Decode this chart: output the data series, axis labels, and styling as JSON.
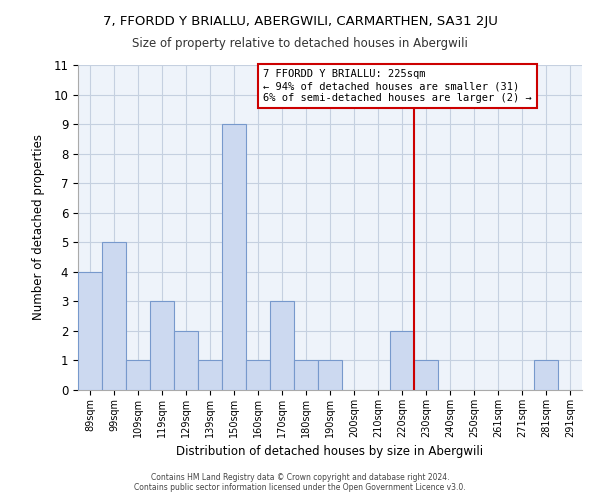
{
  "title": "7, FFORDD Y BRIALLU, ABERGWILI, CARMARTHEN, SA31 2JU",
  "subtitle": "Size of property relative to detached houses in Abergwili",
  "xlabel": "Distribution of detached houses by size in Abergwili",
  "ylabel": "Number of detached properties",
  "bins": [
    "89sqm",
    "99sqm",
    "109sqm",
    "119sqm",
    "129sqm",
    "139sqm",
    "150sqm",
    "160sqm",
    "170sqm",
    "180sqm",
    "190sqm",
    "200sqm",
    "210sqm",
    "220sqm",
    "230sqm",
    "240sqm",
    "250sqm",
    "261sqm",
    "271sqm",
    "281sqm",
    "291sqm"
  ],
  "counts": [
    4,
    5,
    1,
    3,
    2,
    1,
    9,
    1,
    3,
    1,
    1,
    0,
    0,
    2,
    1,
    0,
    0,
    0,
    0,
    1,
    0
  ],
  "bar_color": "#ccd9f0",
  "bar_edge_color": "#7799cc",
  "vline_color": "#cc0000",
  "vline_pos": 13.5,
  "ylim_max": 11,
  "yticks": [
    0,
    1,
    2,
    3,
    4,
    5,
    6,
    7,
    8,
    9,
    10,
    11
  ],
  "annotation_title": "7 FFORDD Y BRIALLU: 225sqm",
  "annotation_line1": "← 94% of detached houses are smaller (31)",
  "annotation_line2": "6% of semi-detached houses are larger (2) →",
  "footer1": "Contains HM Land Registry data © Crown copyright and database right 2024.",
  "footer2": "Contains public sector information licensed under the Open Government Licence v3.0.",
  "bg_color": "#eef3fa"
}
